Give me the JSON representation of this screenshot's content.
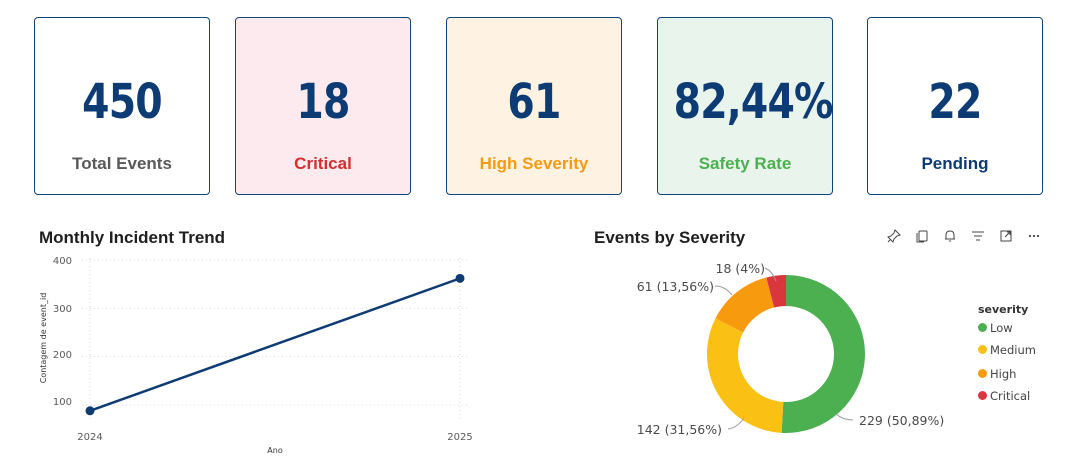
{
  "kpis": [
    {
      "value": "450",
      "label": "Total Events",
      "bg": "#ffffff",
      "label_color": "#595959"
    },
    {
      "value": "18",
      "label": "Critical",
      "bg": "#fdeaee",
      "label_color": "#d32f2f"
    },
    {
      "value": "61",
      "label": "High Severity",
      "bg": "#fef3e2",
      "label_color": "#f39c12"
    },
    {
      "value": "82,44%",
      "label": "Safety Rate",
      "bg": "#e8f4ec",
      "label_color": "#4caf50"
    },
    {
      "value": "22",
      "label": "Pending",
      "bg": "#ffffff",
      "label_color": "#0d3b73"
    }
  ],
  "line_chart": {
    "title": "Monthly Incident Trend",
    "xlabel": "Ano",
    "ylabel": "Contagem de event_id",
    "y_ticks": [
      "400",
      "300",
      "200",
      "100"
    ],
    "x_ticks": [
      "2024",
      "2025"
    ]
  },
  "donut_chart": {
    "title": "Events by Severity",
    "legend_title": "severity",
    "legend": [
      {
        "label": "Low",
        "color": "#4caf50"
      },
      {
        "label": "Medium",
        "color": "#fbc014"
      },
      {
        "label": "High",
        "color": "#f79a0e"
      },
      {
        "label": "Critical",
        "color": "#d9363e"
      }
    ],
    "data_labels": [
      "229 (50,89%)",
      "142 (31,56%)",
      "61 (13,56%)",
      "18 (4%)"
    ]
  },
  "toolbar_icons": [
    "pin-icon",
    "copy-icon",
    "bell-icon",
    "filter-icon",
    "focus-mode-icon",
    "more-options-icon"
  ],
  "chart_data": [
    {
      "type": "line",
      "title": "Monthly Incident Trend",
      "xlabel": "Ano",
      "ylabel": "Contagem de event_id",
      "x": [
        "2024",
        "2025"
      ],
      "series": [
        {
          "values": [
            88,
            362
          ]
        }
      ],
      "ylim": [
        60,
        420
      ],
      "grid": true,
      "color": "#0d3b73"
    },
    {
      "type": "pie",
      "title": "Events by Severity",
      "categories": [
        "Low",
        "Medium",
        "High",
        "Critical"
      ],
      "values": [
        229,
        142,
        61,
        18
      ],
      "colors": [
        "#4caf50",
        "#fbc014",
        "#f79a0e",
        "#d9363e"
      ],
      "legend_title": "severity",
      "legend": "right"
    }
  ]
}
